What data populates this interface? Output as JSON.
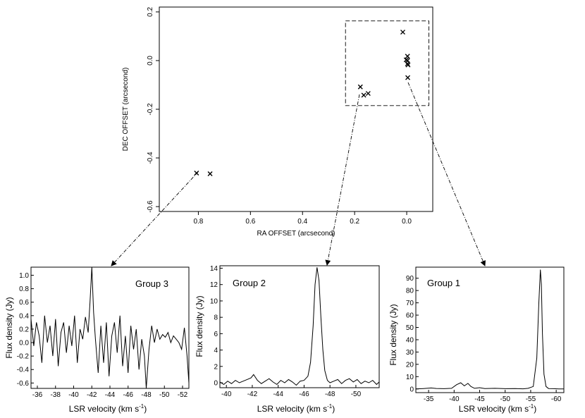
{
  "chart_data": [
    {
      "type": "scatter",
      "xlabel": "RA OFFSET (arcsecond)",
      "ylabel": "DEC OFFSET (arcsecond)",
      "xlim": [
        0.95,
        -0.1
      ],
      "ylim": [
        -0.62,
        0.22
      ],
      "xticks": [
        "0.8",
        "0.6",
        "0.4",
        "0.2",
        "0.0"
      ],
      "yticks": [
        "0.2",
        "0.0",
        "-0.2",
        "-0.4",
        "-0.6"
      ],
      "marker": "x",
      "groups": [
        {
          "name": "Group 1",
          "points": [
            [
              0.015,
              0.117
            ],
            [
              0.002,
              0.003
            ],
            [
              -0.003,
              0.018
            ],
            [
              -0.003,
              0.0
            ],
            [
              -0.003,
              -0.013
            ],
            [
              -0.005,
              -0.018
            ],
            [
              -0.004,
              -0.07
            ]
          ]
        },
        {
          "name": "Group 2",
          "points": [
            [
              0.178,
              -0.108
            ],
            [
              0.165,
              -0.142
            ],
            [
              0.148,
              -0.135
            ]
          ]
        },
        {
          "name": "Group 3",
          "points": [
            [
              0.807,
              -0.462
            ],
            [
              0.755,
              -0.465
            ]
          ]
        }
      ],
      "box": {
        "x": [
          -0.085,
          0.235
        ],
        "y": [
          -0.185,
          0.163
        ]
      }
    },
    {
      "type": "line",
      "label": "Group 3",
      "xlabel": "LSR velocity (km s",
      "ylabel": "Flux density (Jy)",
      "xlim": [
        -35.3,
        -52.7
      ],
      "ylim": [
        -0.68,
        1.12
      ],
      "xticks": [
        "-36",
        "-38",
        "-40",
        "-42",
        "-44",
        "-46",
        "-48",
        "-50",
        "-52"
      ],
      "yticks": [
        "1.0",
        "0.8",
        "0.6",
        "0.4",
        "0.2",
        "0.0",
        "-0.2",
        "-0.4",
        "-0.6"
      ],
      "x": [
        -35.3,
        -35.6,
        -35.9,
        -36.2,
        -36.5,
        -36.8,
        -37.1,
        -37.4,
        -37.7,
        -38.0,
        -38.3,
        -38.6,
        -38.9,
        -39.2,
        -39.5,
        -39.8,
        -40.1,
        -40.4,
        -40.7,
        -41.0,
        -41.3,
        -41.6,
        -41.8,
        -42.0,
        -42.2,
        -42.4,
        -42.7,
        -43.0,
        -43.3,
        -43.6,
        -43.9,
        -44.2,
        -44.5,
        -44.8,
        -45.1,
        -45.4,
        -45.7,
        -46.0,
        -46.3,
        -46.6,
        -46.9,
        -47.2,
        -47.5,
        -47.8,
        -48.0,
        -48.3,
        -48.6,
        -48.9,
        -49.2,
        -49.5,
        -49.8,
        -50.1,
        -50.4,
        -50.7,
        -51.0,
        -51.3,
        -51.6,
        -51.9,
        -52.2,
        -52.5,
        -52.7
      ],
      "y": [
        0.35,
        -0.05,
        0.3,
        0.1,
        -0.3,
        0.4,
        0.0,
        0.25,
        -0.2,
        0.35,
        -0.35,
        0.15,
        0.3,
        -0.15,
        0.25,
        -0.05,
        0.4,
        -0.3,
        0.2,
        0.05,
        0.38,
        0.15,
        0.6,
        1.12,
        0.45,
        0.05,
        -0.45,
        0.25,
        -0.3,
        0.3,
        -0.5,
        0.1,
        0.3,
        -0.15,
        0.4,
        -0.35,
        0.1,
        -0.45,
        0.25,
        -0.1,
        0.2,
        -0.4,
        0.05,
        -0.2,
        -0.68,
        -0.1,
        0.25,
        0.0,
        0.2,
        0.05,
        0.12,
        0.08,
        0.15,
        0.0,
        0.1,
        0.05,
        0.0,
        -0.1,
        0.22,
        -0.2,
        -0.6
      ]
    },
    {
      "type": "line",
      "label": "Group 2",
      "xlabel": "LSR velocity (km s",
      "ylabel": "Flux density (Jy)",
      "xlim": [
        -39.5,
        -51.8
      ],
      "ylim": [
        -0.6,
        14.3
      ],
      "xticks": [
        "-40",
        "-42",
        "-44",
        "-46",
        "-48",
        "-50"
      ],
      "yticks": [
        "14",
        "12",
        "10",
        "8",
        "6",
        "4",
        "2",
        "0"
      ],
      "x": [
        -39.5,
        -39.8,
        -40.1,
        -40.4,
        -40.7,
        -41.0,
        -41.3,
        -41.6,
        -41.9,
        -42.1,
        -42.4,
        -42.7,
        -43.0,
        -43.3,
        -43.6,
        -43.9,
        -44.2,
        -44.5,
        -44.8,
        -45.1,
        -45.4,
        -45.7,
        -46.0,
        -46.3,
        -46.5,
        -46.7,
        -46.85,
        -47.0,
        -47.15,
        -47.3,
        -47.45,
        -47.6,
        -47.8,
        -48.0,
        -48.3,
        -48.6,
        -48.9,
        -49.2,
        -49.5,
        -49.8,
        -50.1,
        -50.4,
        -50.7,
        -51.0,
        -51.3,
        -51.6,
        -51.8
      ],
      "y": [
        0.1,
        -0.2,
        0.2,
        -0.1,
        0.3,
        0.0,
        0.2,
        0.4,
        0.6,
        1.0,
        0.3,
        -0.1,
        0.2,
        0.5,
        0.1,
        -0.2,
        0.3,
        0.0,
        0.4,
        0.1,
        -0.3,
        0.2,
        0.3,
        0.8,
        2.5,
        7.0,
        12.0,
        14.1,
        12.5,
        8.0,
        4.0,
        1.5,
        0.3,
        0.0,
        0.2,
        0.4,
        -0.1,
        0.3,
        0.5,
        0.1,
        0.4,
        -0.1,
        0.2,
        0.0,
        0.3,
        -0.2,
        0.1
      ]
    },
    {
      "type": "line",
      "label": "Group 1",
      "xlabel": "LSR velocity (km s",
      "ylabel": "Flux density (Jy)",
      "xlim": [
        -32.5,
        -61.5
      ],
      "ylim": [
        -3.0,
        99.0
      ],
      "xticks": [
        "-35",
        "-40",
        "-45",
        "-50",
        "-55",
        "-60"
      ],
      "yticks": [
        "90",
        "80",
        "70",
        "60",
        "50",
        "40",
        "30",
        "20",
        "10",
        "0"
      ],
      "x": [
        -32.5,
        -34.0,
        -35.5,
        -36.5,
        -38.0,
        -39.5,
        -40.5,
        -41.3,
        -42.0,
        -42.7,
        -43.3,
        -44.0,
        -45.0,
        -46.0,
        -48.0,
        -50.0,
        -52.0,
        -53.5,
        -54.5,
        -55.5,
        -56.2,
        -56.6,
        -56.9,
        -57.1,
        -57.3,
        -57.6,
        -58.0,
        -58.5,
        -59.5,
        -60.5,
        -61.5
      ],
      "y": [
        0.0,
        0.3,
        0.8,
        0.4,
        0.2,
        0.5,
        3.5,
        5.0,
        2.5,
        4.5,
        2.0,
        0.5,
        1.0,
        0.3,
        0.5,
        0.2,
        0.3,
        0.1,
        0.5,
        2.0,
        25.0,
        70.0,
        97.0,
        85.0,
        45.0,
        12.0,
        2.0,
        0.3,
        0.2,
        0.0,
        0.0
      ]
    }
  ],
  "units": {
    "kms_exponent": "-1"
  }
}
